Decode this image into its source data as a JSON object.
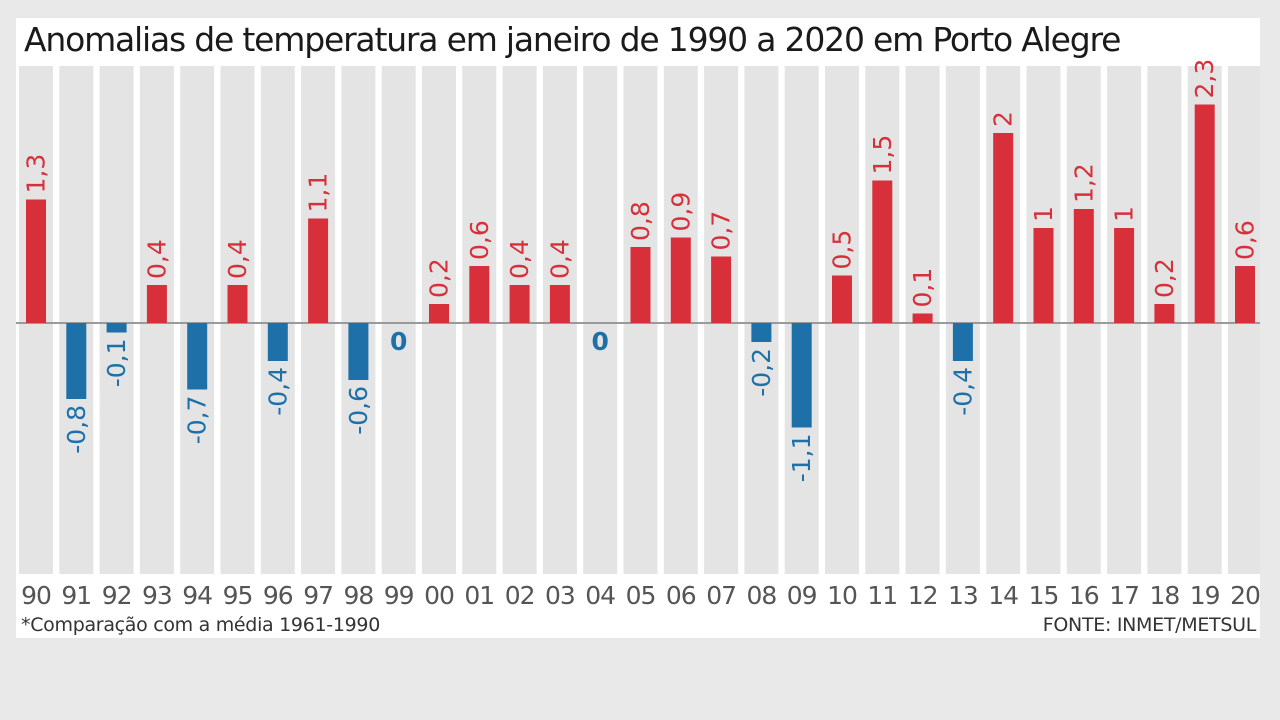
{
  "chart_data": {
    "type": "bar",
    "title": "Anomalias de temperatura em janeiro de 1990 a 2020 em Porto Alegre",
    "categories": [
      "90",
      "91",
      "92",
      "93",
      "94",
      "95",
      "96",
      "97",
      "98",
      "99",
      "00",
      "01",
      "02",
      "03",
      "04",
      "05",
      "06",
      "07",
      "08",
      "09",
      "10",
      "11",
      "12",
      "13",
      "14",
      "15",
      "16",
      "17",
      "18",
      "19",
      "20"
    ],
    "values": [
      1.3,
      -0.8,
      -0.1,
      0.4,
      -0.7,
      0.4,
      -0.4,
      1.1,
      -0.6,
      0,
      0.2,
      0.6,
      0.4,
      0.4,
      0,
      0.8,
      0.9,
      0.7,
      -0.2,
      -1.1,
      0.5,
      1.5,
      0.1,
      -0.4,
      2,
      1,
      1.2,
      1,
      0.2,
      2.3,
      0.6
    ],
    "value_labels": [
      "1,3",
      "-0,8",
      "-0,1",
      "0,4",
      "-0,7",
      "0,4",
      "-0,4",
      "1,1",
      "-0,6",
      "0",
      "0,2",
      "0,6",
      "0,4",
      "0,4",
      "0",
      "0,8",
      "0,9",
      "0,7",
      "-0,2",
      "-1,1",
      "0,5",
      "1,5",
      "0,1",
      "-0,4",
      "2",
      "1",
      "1,2",
      "1",
      "0,2",
      "2,3",
      "0,6"
    ],
    "colors": {
      "positive": "#d7303b",
      "negative": "#1e71a8",
      "column_bg": "#e4e4e4",
      "baseline": "#9a9a9a",
      "category_text": "#555555"
    },
    "footnote": "*Comparação com a média 1961-1990",
    "source": "FONTE: INMET/METSUL"
  }
}
